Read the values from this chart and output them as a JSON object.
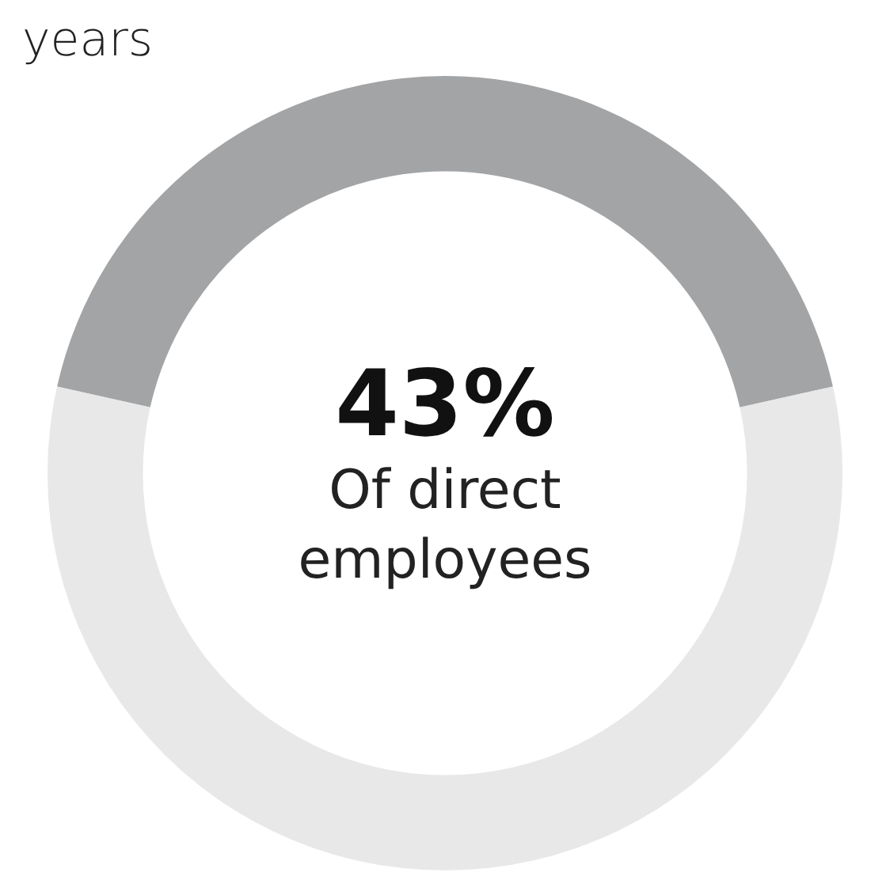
{
  "chart_data": {
    "type": "donut",
    "title": "years",
    "categories": [
      null,
      null
    ],
    "values": [
      43,
      57
    ],
    "colors": [
      "#a3a4a6",
      "#e8e8e8"
    ],
    "legend": false,
    "annotations": [
      "43%",
      "Of direct employees"
    ]
  }
}
